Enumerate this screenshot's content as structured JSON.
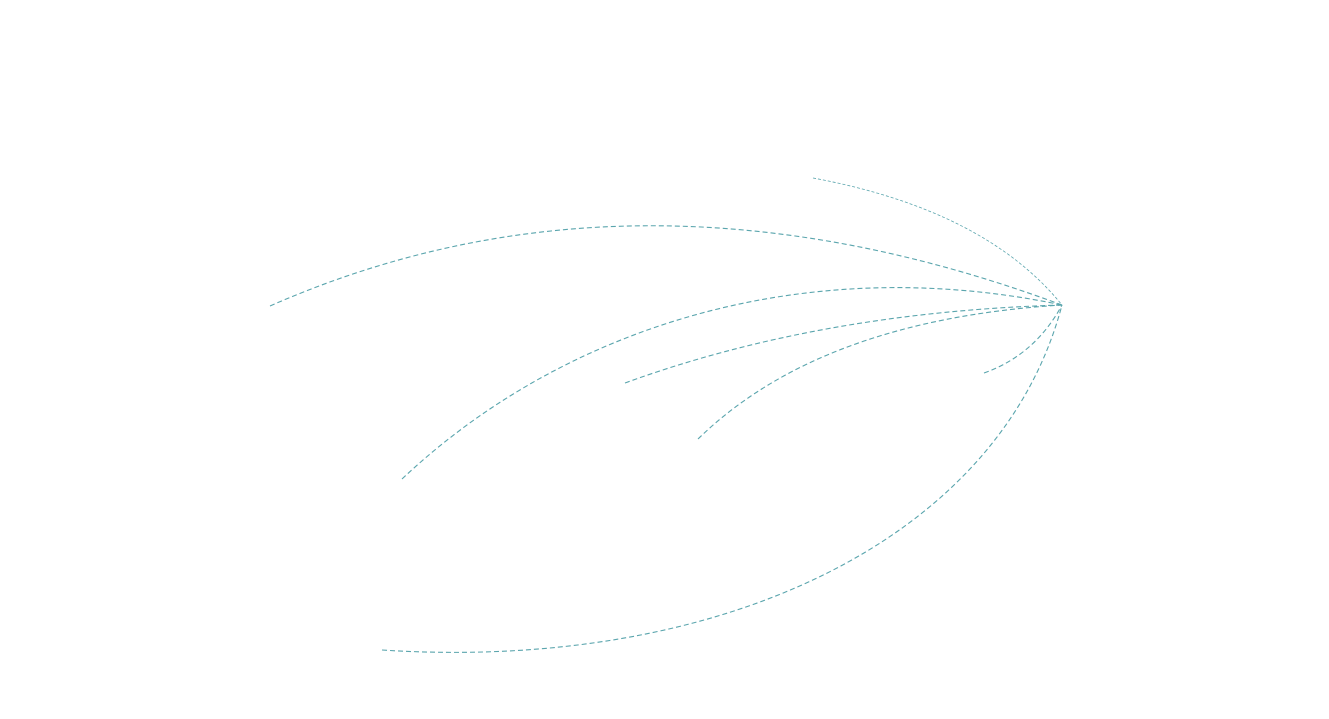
{
  "diagram": {
    "type": "flow-lines",
    "line_style": "dashed",
    "line_color": "#5aa5ad",
    "background": "#ffffff",
    "flow_count": 7
  }
}
